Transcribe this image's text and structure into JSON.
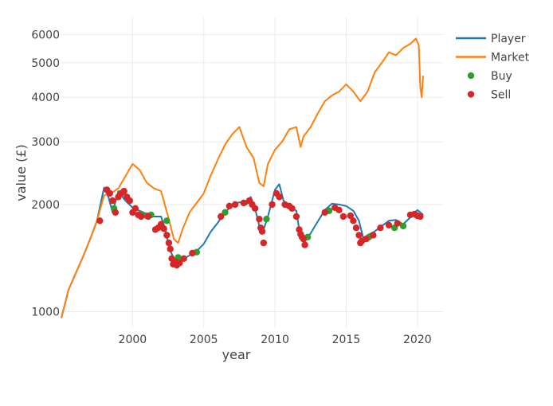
{
  "chart_data": {
    "type": "line",
    "title": "",
    "xlabel": "year",
    "ylabel": "value (£)",
    "y_scale": "log",
    "xlim": [
      1995.0,
      2021.8
    ],
    "ylim": [
      900,
      6700
    ],
    "grid": true,
    "legend_position": "top-right",
    "x_ticks": [
      2000,
      2005,
      2010,
      2015,
      2020
    ],
    "x_tick_labels": [
      "2000",
      "2005",
      "2010",
      "2015",
      "2020"
    ],
    "y_ticks": [
      1000,
      2000,
      3000,
      4000,
      5000,
      6000
    ],
    "y_tick_labels": [
      "1000",
      "2000",
      "3000",
      "4000",
      "5000",
      "6000"
    ],
    "colors": {
      "Player": "#1f77b4",
      "Market": "#ff7f0e",
      "Buy": "#2ca02c",
      "Sell": "#d62728"
    },
    "legend": [
      "Player",
      "Market",
      "Buy",
      "Sell"
    ],
    "series": [
      {
        "name": "Player",
        "kind": "line",
        "x": [
          1995.0,
          1995.5,
          1996.0,
          1996.5,
          1997.0,
          1997.5,
          1998.0,
          1998.3,
          1998.6,
          1999.0,
          1999.5,
          2000.0,
          2000.5,
          2001.0,
          2001.5,
          2002.0,
          2002.3,
          2002.6,
          2002.9,
          2003.2,
          2003.5,
          2004.0,
          2004.5,
          2005.0,
          2005.5,
          2006.0,
          2006.5,
          2007.0,
          2007.5,
          2008.0,
          2008.3,
          2008.6,
          2008.9,
          2009.2,
          2009.5,
          2009.8,
          2010.0,
          2010.3,
          2010.6,
          2011.0,
          2011.5,
          2011.8,
          2012.0,
          2012.5,
          2013.0,
          2013.5,
          2014.0,
          2014.5,
          2015.0,
          2015.5,
          2015.9,
          2016.2,
          2016.5,
          2017.0,
          2017.5,
          2018.0,
          2018.5,
          2019.0,
          2019.5,
          2020.0,
          2020.2,
          2020.4
        ],
        "y": [
          960,
          1150,
          1280,
          1420,
          1590,
          1800,
          2230,
          2100,
          1900,
          2180,
          2050,
          1960,
          1920,
          1880,
          1850,
          1850,
          1700,
          1500,
          1410,
          1380,
          1400,
          1440,
          1480,
          1550,
          1680,
          1780,
          1900,
          1990,
          2030,
          2000,
          2100,
          1950,
          1740,
          1700,
          1850,
          2050,
          2200,
          2280,
          2050,
          1980,
          1920,
          1600,
          1570,
          1660,
          1790,
          1930,
          2010,
          2000,
          1980,
          1920,
          1800,
          1610,
          1640,
          1680,
          1740,
          1800,
          1810,
          1760,
          1840,
          1930,
          1900,
          1870
        ]
      },
      {
        "name": "Market",
        "kind": "line",
        "x": [
          1995.0,
          1995.5,
          1996.0,
          1996.5,
          1997.0,
          1997.5,
          1998.0,
          1998.5,
          1999.0,
          1999.5,
          2000.0,
          2000.5,
          2001.0,
          2001.5,
          2002.0,
          2002.5,
          2002.9,
          2003.2,
          2003.5,
          2004.0,
          2004.5,
          2005.0,
          2005.5,
          2006.0,
          2006.5,
          2007.0,
          2007.5,
          2008.0,
          2008.5,
          2008.9,
          2009.2,
          2009.5,
          2010.0,
          2010.5,
          2011.0,
          2011.5,
          2011.8,
          2012.0,
          2012.5,
          2013.0,
          2013.5,
          2014.0,
          2014.5,
          2015.0,
          2015.5,
          2016.0,
          2016.5,
          2017.0,
          2017.5,
          2018.0,
          2018.5,
          2019.0,
          2019.5,
          2019.9,
          2020.1,
          2020.2,
          2020.3,
          2020.4
        ],
        "y": [
          960,
          1150,
          1280,
          1420,
          1590,
          1800,
          2120,
          2150,
          2220,
          2400,
          2600,
          2500,
          2300,
          2220,
          2180,
          1850,
          1600,
          1560,
          1700,
          1900,
          2020,
          2150,
          2420,
          2680,
          2950,
          3150,
          3300,
          2900,
          2700,
          2300,
          2250,
          2600,
          2850,
          3000,
          3250,
          3300,
          2900,
          3100,
          3300,
          3600,
          3900,
          4050,
          4150,
          4350,
          4150,
          3900,
          4150,
          4700,
          5000,
          5350,
          5250,
          5500,
          5650,
          5850,
          5600,
          4300,
          4000,
          4600
        ]
      },
      {
        "name": "Buy",
        "kind": "markers",
        "x": [
          1998.7,
          2000.6,
          2001.0,
          2001.3,
          2002.4,
          2003.2,
          2004.5,
          2006.5,
          2009.4,
          2012.3,
          2013.8,
          2016.6,
          2018.4,
          2019.0
        ],
        "y": [
          1950,
          1880,
          1860,
          1870,
          1800,
          1420,
          1470,
          1900,
          1820,
          1620,
          1920,
          1620,
          1720,
          1740
        ]
      },
      {
        "name": "Sell",
        "kind": "markers",
        "x": [
          1997.7,
          1998.2,
          1998.4,
          1998.6,
          1998.8,
          1999.0,
          1999.2,
          1999.4,
          1999.6,
          1999.8,
          2000.0,
          2000.2,
          2000.4,
          2000.6,
          2001.1,
          2001.6,
          2001.8,
          2002.0,
          2002.2,
          2002.4,
          2002.55,
          2002.65,
          2002.75,
          2002.85,
          2003.0,
          2003.1,
          2003.3,
          2003.6,
          2004.2,
          2006.2,
          2006.8,
          2007.2,
          2007.8,
          2008.2,
          2008.4,
          2008.6,
          2008.9,
          2009.0,
          2009.1,
          2009.2,
          2009.8,
          2010.1,
          2010.3,
          2010.7,
          2011.0,
          2011.2,
          2011.5,
          2011.7,
          2011.8,
          2011.9,
          2012.0,
          2012.1,
          2013.5,
          2014.2,
          2014.5,
          2014.8,
          2015.3,
          2015.5,
          2015.7,
          2015.9,
          2016.0,
          2016.1,
          2016.4,
          2016.9,
          2017.4,
          2018.0,
          2018.6,
          2019.5,
          2019.8,
          2020.0,
          2020.2
        ],
        "y": [
          1800,
          2200,
          2150,
          2050,
          1900,
          2100,
          2150,
          2180,
          2100,
          2050,
          1900,
          1950,
          1870,
          1850,
          1850,
          1700,
          1720,
          1760,
          1710,
          1640,
          1560,
          1500,
          1410,
          1360,
          1380,
          1350,
          1370,
          1410,
          1460,
          1850,
          1980,
          2000,
          2020,
          2050,
          2000,
          1950,
          1820,
          1720,
          1680,
          1560,
          2000,
          2150,
          2100,
          2000,
          1980,
          1950,
          1850,
          1700,
          1650,
          1620,
          1600,
          1540,
          1900,
          1960,
          1930,
          1850,
          1860,
          1800,
          1720,
          1640,
          1560,
          1580,
          1600,
          1640,
          1720,
          1750,
          1770,
          1870,
          1880,
          1860,
          1850
        ]
      }
    ]
  }
}
